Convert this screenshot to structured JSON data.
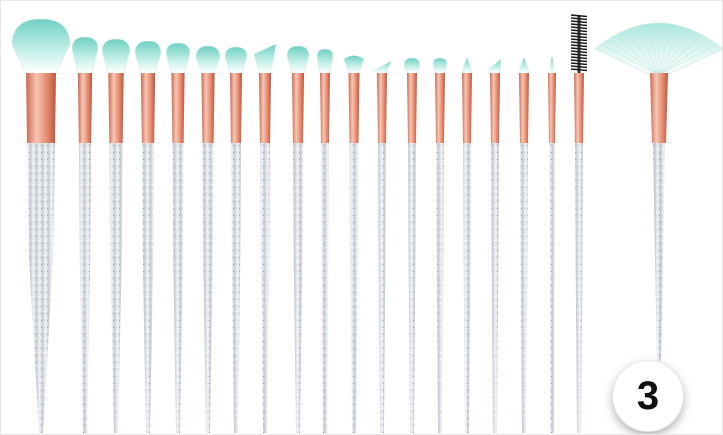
{
  "product_image": {
    "subject": "makeup-brush-set",
    "colors": {
      "bristle_tip": "#7fd6c9",
      "bristle_base": "#f6fbfa",
      "ferrule": "#e58b70",
      "ferrule_highlight": "#f8c6b3",
      "handle": "#d9dde3",
      "glitter": "#ffffff",
      "spoolie": "#1b1b1b"
    }
  },
  "badge": {
    "number": "3"
  }
}
